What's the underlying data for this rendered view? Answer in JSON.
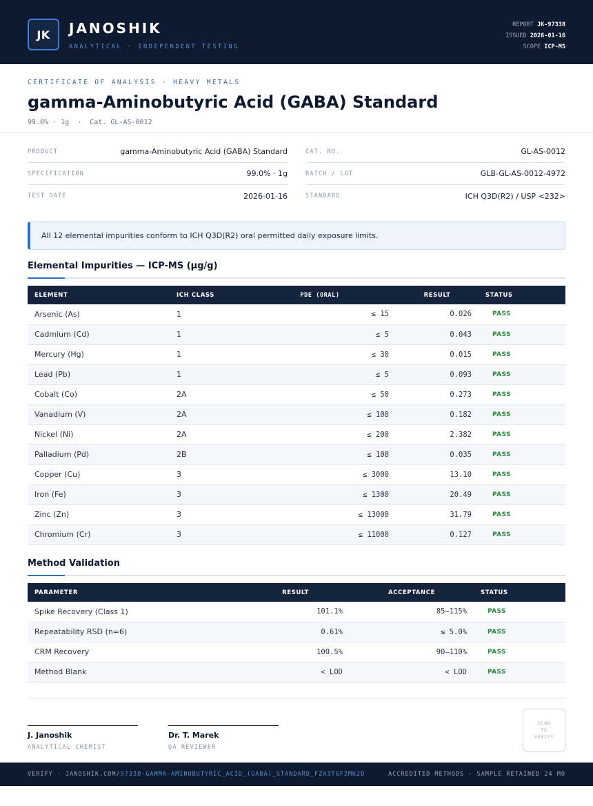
{
  "header": {
    "logo_initials": "JK",
    "brand": "JANOSHIK",
    "tagline": "ANALYTICAL · INDEPENDENT TESTING",
    "report_label": "REPORT",
    "report_value": "JK-97338",
    "issued_label": "ISSUED",
    "issued_value": "2026-01-16",
    "scope_label": "SCOPE",
    "scope_value": "ICP-MS"
  },
  "title": {
    "kicker": "CERTIFICATE OF ANALYSIS · HEAVY METALS",
    "main": "gamma-Aminobutyric Acid (GABA) Standard",
    "subtitle": "99.0% · 1g  ·  Cat. GL-AS-0012"
  },
  "info": {
    "left": [
      {
        "label": "PRODUCT",
        "value": "gamma-Aminobutyric Acid (GABA) Standard"
      },
      {
        "label": "SPECIFICATION",
        "value": "99.0% · 1g"
      },
      {
        "label": "TEST DATE",
        "value": "2026-01-16"
      }
    ],
    "right": [
      {
        "label": "CAT. NO.",
        "value": "GL-AS-0012"
      },
      {
        "label": "BATCH / LOT",
        "value": "GLB-GL-AS-0012-4972"
      },
      {
        "label": "STANDARD",
        "value": "ICH Q3D(R2) / USP <232>"
      }
    ]
  },
  "notice": "All 12 elemental impurities conform to ICH Q3D(R2) oral permitted daily exposure limits.",
  "impurities": {
    "title": "Elemental Impurities — ICP-MS (µg/g)",
    "headers": [
      "ELEMENT",
      "ICH CLASS",
      "PDE (ORAL)",
      "RESULT",
      "STATUS"
    ],
    "rows": [
      {
        "element": "Arsenic (As)",
        "class": "1",
        "pde": "≤ 15",
        "result": "0.026",
        "status": "PASS"
      },
      {
        "element": "Cadmium (Cd)",
        "class": "1",
        "pde": "≤ 5",
        "result": "0.043",
        "status": "PASS"
      },
      {
        "element": "Mercury (Hg)",
        "class": "1",
        "pde": "≤ 30",
        "result": "0.015",
        "status": "PASS"
      },
      {
        "element": "Lead (Pb)",
        "class": "1",
        "pde": "≤ 5",
        "result": "0.093",
        "status": "PASS"
      },
      {
        "element": "Cobalt (Co)",
        "class": "2A",
        "pde": "≤ 50",
        "result": "0.273",
        "status": "PASS"
      },
      {
        "element": "Vanadium (V)",
        "class": "2A",
        "pde": "≤ 100",
        "result": "0.182",
        "status": "PASS"
      },
      {
        "element": "Nickel (Ni)",
        "class": "2A",
        "pde": "≤ 200",
        "result": "2.382",
        "status": "PASS"
      },
      {
        "element": "Palladium (Pd)",
        "class": "2B",
        "pde": "≤ 100",
        "result": "0.035",
        "status": "PASS"
      },
      {
        "element": "Copper (Cu)",
        "class": "3",
        "pde": "≤ 3000",
        "result": "13.10",
        "status": "PASS"
      },
      {
        "element": "Iron (Fe)",
        "class": "3",
        "pde": "≤ 1300",
        "result": "20.49",
        "status": "PASS"
      },
      {
        "element": "Zinc (Zn)",
        "class": "3",
        "pde": "≤ 13000",
        "result": "31.79",
        "status": "PASS"
      },
      {
        "element": "Chromium (Cr)",
        "class": "3",
        "pde": "≤ 11000",
        "result": "0.127",
        "status": "PASS"
      }
    ]
  },
  "validation": {
    "title": "Method Validation",
    "headers": [
      "PARAMETER",
      "RESULT",
      "ACCEPTANCE",
      "STATUS"
    ],
    "rows": [
      {
        "parameter": "Spike Recovery (Class 1)",
        "result": "101.1%",
        "acceptance": "85–115%",
        "status": "PASS"
      },
      {
        "parameter": "Repeatability RSD (n=6)",
        "result": "0.61%",
        "acceptance": "≤ 5.0%",
        "status": "PASS"
      },
      {
        "parameter": "CRM Recovery",
        "result": "100.5%",
        "acceptance": "90–110%",
        "status": "PASS"
      },
      {
        "parameter": "Method Blank",
        "result": "< LOD",
        "acceptance": "< LOD",
        "status": "PASS"
      }
    ]
  },
  "signatures": [
    {
      "name": "J. Janoshik",
      "role": "ANALYTICAL CHEMIST"
    },
    {
      "name": "Dr. T. Marek",
      "role": "QA REVIEWER"
    }
  ],
  "qr": {
    "line1": "SCAN",
    "line2": "TO",
    "line3": "VERIFY"
  },
  "footer": {
    "verify_prefix": "VERIFY · JANOSHIK.COM/",
    "verify_path": "97338-GAMMA-AMINOBUTYRIC_ACID_(GABA)_STANDARD_FZA3TGF2MK2D",
    "right": "ACCREDITED METHODS · SAMPLE RETAINED 24 MO"
  },
  "colors": {
    "navy": "#0e1a2f",
    "accent": "#2f6fc1",
    "pass": "#2a8a3e"
  }
}
